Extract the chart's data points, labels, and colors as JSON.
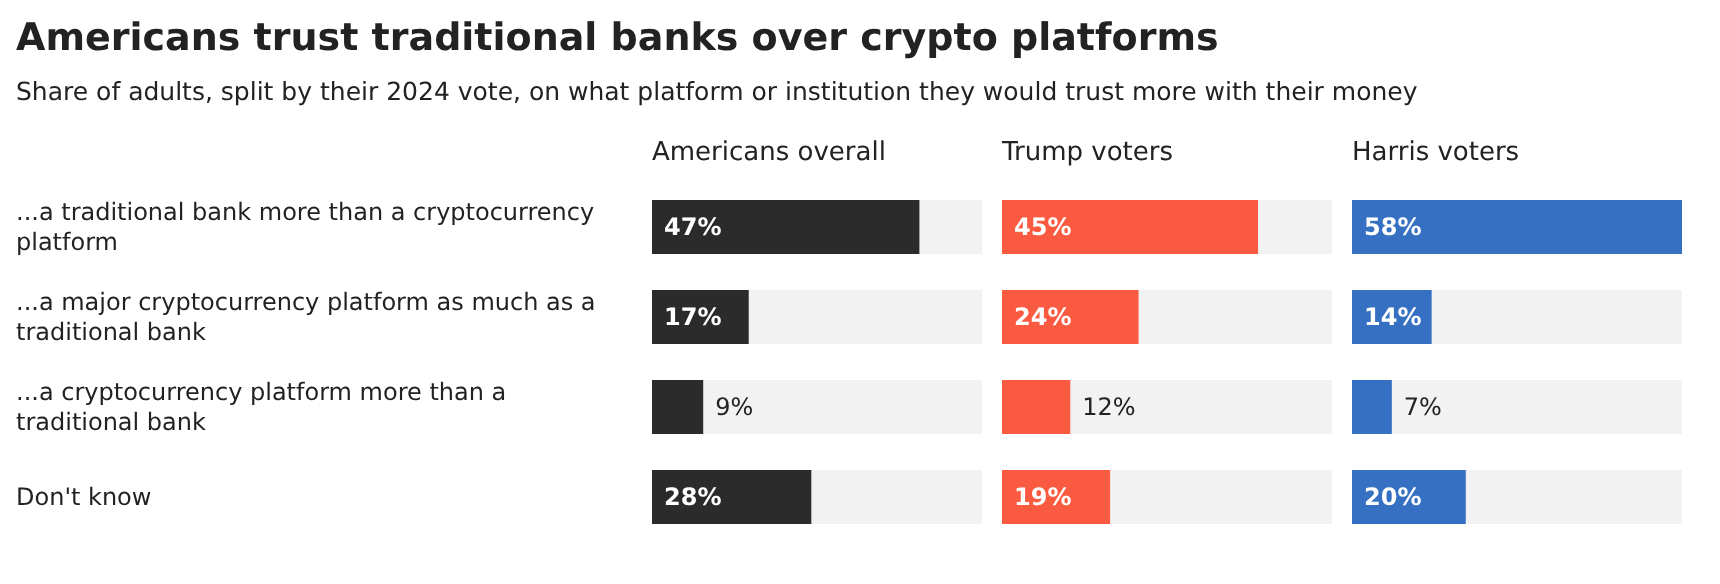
{
  "chart_data": [
    {
      "type": "bar",
      "orientation": "horizontal",
      "title": "Americans trust traditional banks over crypto platforms",
      "subtitle": "Share of adults, split by their 2024 vote, on what platform or institution they would trust more with their money",
      "categories": [
        "...a traditional bank more than a cryptocurrency platform",
        "...a major cryptocurrency platform as much as a traditional bank",
        "...a cryptocurrency platform more than a traditional bank",
        "Don't know"
      ],
      "tick_labels": "y",
      "series": [
        {
          "name": "Americans overall",
          "color": "#2b2b2b",
          "values": [
            47,
            17,
            9,
            28
          ],
          "value_labels": [
            "47%",
            "17%",
            "9%",
            "28%"
          ]
        }
      ]
    },
    {
      "type": "bar",
      "orientation": "horizontal",
      "categories": [
        null,
        null,
        null,
        null
      ],
      "tick_labels": false,
      "series": [
        {
          "name": "Trump voters",
          "color": "#fa5a3f",
          "values": [
            45,
            24,
            12,
            19
          ],
          "value_labels": [
            "45%",
            "24%",
            "12%",
            "19%"
          ]
        }
      ]
    },
    {
      "type": "bar",
      "orientation": "horizontal",
      "categories": [
        null,
        null,
        null,
        null
      ],
      "tick_labels": false,
      "series": [
        {
          "name": "Harris voters",
          "color": "#3570c2",
          "values": [
            58,
            14,
            7,
            20
          ],
          "value_labels": [
            "58%",
            "14%",
            "7%",
            "20%"
          ]
        }
      ]
    }
  ]
}
